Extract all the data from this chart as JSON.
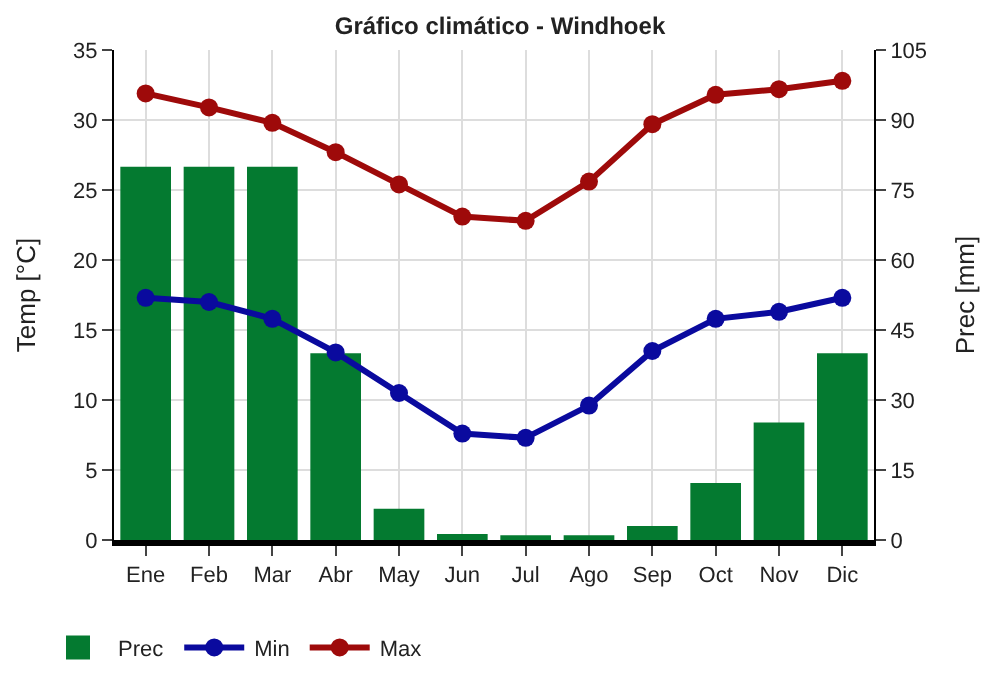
{
  "chart_data": {
    "type": "bar",
    "title": "Gráfico climático - Windhoek",
    "ylabel": "Temp [°C]",
    "y2label": "Prec [mm]",
    "categories": [
      "Ene",
      "Feb",
      "Mar",
      "Abr",
      "May",
      "Jun",
      "Jul",
      "Ago",
      "Sep",
      "Oct",
      "Nov",
      "Dic"
    ],
    "series": [
      {
        "name": "Prec",
        "axis": "y2",
        "color": "#047a30",
        "values": [
          80,
          80,
          80,
          40,
          6.7,
          1.3,
          1,
          1,
          3,
          12.2,
          25.2,
          40
        ]
      },
      {
        "name": "Min",
        "type": "line",
        "color": "#0a0a9e",
        "marker": "circle",
        "values": [
          17.3,
          17.0,
          15.8,
          13.4,
          10.5,
          7.6,
          7.3,
          9.6,
          13.5,
          15.8,
          16.3,
          17.3
        ]
      },
      {
        "name": "Max",
        "type": "line",
        "color": "#9e0a0a",
        "marker": "circle",
        "values": [
          31.9,
          30.9,
          29.8,
          27.7,
          25.4,
          23.1,
          22.8,
          25.6,
          29.7,
          31.8,
          32.2,
          32.8
        ]
      }
    ],
    "ylim": [
      0,
      35
    ],
    "yticks": [
      0,
      5,
      10,
      15,
      20,
      25,
      30,
      35
    ],
    "y2lim": [
      0,
      105
    ],
    "y2ticks": [
      0,
      15,
      30,
      45,
      60,
      75,
      90,
      105
    ],
    "grid": true,
    "legend": "bottom left"
  }
}
